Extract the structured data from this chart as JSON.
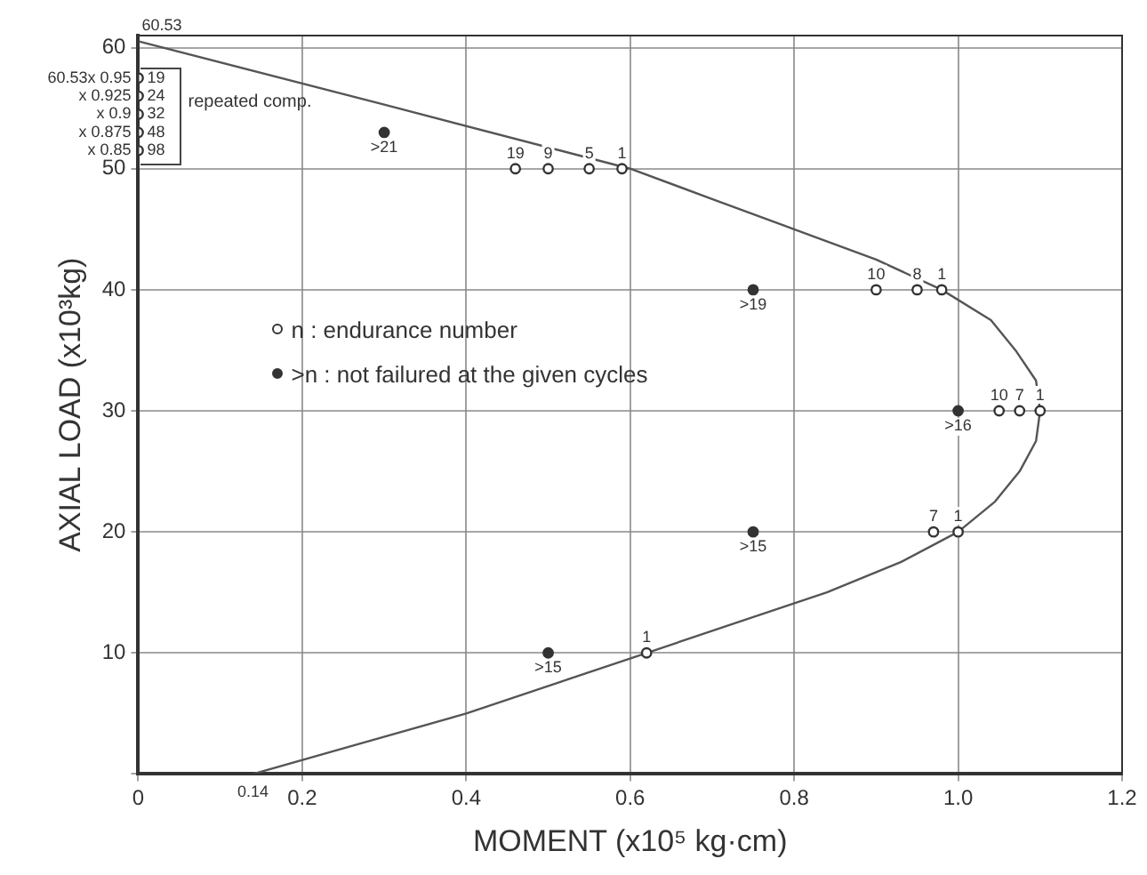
{
  "chart_data": {
    "type": "scatter",
    "xlabel": "MOMENT (x10⁵ kg·cm)",
    "ylabel": "AXIAL LOAD (x10³kg)",
    "xlim": [
      0,
      1.2
    ],
    "ylim": [
      0,
      61
    ],
    "xticks": [
      0,
      0.2,
      0.4,
      0.6,
      0.8,
      {
        "value": 1,
        "label": "1.0"
      },
      1.2
    ],
    "yticks": [
      {
        "value": 0,
        "label": null
      },
      10,
      20,
      30,
      40,
      50,
      60
    ],
    "grid": true,
    "legend": "left",
    "marker": "circle",
    "annotations": [
      "repeated comp.",
      {
        "text": "60.53x 0.95",
        "x": 0,
        "y": 57.5
      },
      {
        "text": "x 0.925",
        "x": 0,
        "y": 56
      },
      {
        "text": "x 0.9",
        "x": 0,
        "y": 54.5
      },
      {
        "text": "x 0.875",
        "x": 0,
        "y": 53
      },
      {
        "text": "x 0.85",
        "x": 0,
        "y": 51.5
      },
      {
        "text": "19",
        "x": 0,
        "y": 57.5
      },
      {
        "text": "24",
        "x": 0,
        "y": 56
      },
      {
        "text": "32",
        "x": 0,
        "y": 54.5
      },
      {
        "text": "48",
        "x": 0,
        "y": 53
      },
      {
        "text": "98",
        "x": 0,
        "y": 51.5
      },
      {
        "text": "19",
        "x": 0.46,
        "y": 50
      },
      {
        "text": "9",
        "x": 0.5,
        "y": 50
      },
      {
        "text": "5",
        "x": 0.55,
        "y": 50
      },
      {
        "text": "1",
        "x": 0.59,
        "y": 50
      },
      {
        "text": "10",
        "x": 0.9,
        "y": 40
      },
      {
        "text": "8",
        "x": 0.95,
        "y": 40
      },
      {
        "text": "1",
        "x": 0.98,
        "y": 40
      },
      {
        "text": "10",
        "x": 1.05,
        "y": 30
      },
      {
        "text": "7",
        "x": 1.075,
        "y": 30
      },
      {
        "text": "1",
        "x": 1.1,
        "y": 30
      },
      {
        "text": "7",
        "x": 0.97,
        "y": 20
      },
      {
        "text": "1",
        "x": 1.0,
        "y": 20
      },
      {
        "text": "1",
        "x": 0.62,
        "y": 10
      },
      {
        "text": ">21",
        "x": 0.3,
        "y": 53
      },
      {
        "text": ">19",
        "x": 0.75,
        "y": 40
      },
      {
        "text": ">16",
        "x": 1.0,
        "y": 30
      },
      {
        "text": ">15",
        "x": 0.75,
        "y": 20
      },
      {
        "text": ">15",
        "x": 0.5,
        "y": 10
      },
      {
        "text": "0.14",
        "x": 0.14,
        "y": 0
      },
      {
        "text": "60.53",
        "x": 0,
        "y": 60.53
      }
    ],
    "series": [
      {
        "name": "n : endurance number",
        "type": "scatter",
        "color": "#333333",
        "x": [
          0,
          0,
          0,
          0,
          0,
          0.46,
          0.5,
          0.55,
          0.59,
          0.9,
          0.95,
          0.98,
          1.05,
          1.075,
          1.1,
          0.97,
          1.0,
          0.62
        ],
        "values": [
          57.5,
          56,
          54.5,
          53,
          51.5,
          50,
          50,
          50,
          50,
          40,
          40,
          40,
          30,
          30,
          30,
          20,
          20,
          10
        ]
      },
      {
        "name": ">n : not failured at the given cycles",
        "type": "scatter",
        "color": "#333333",
        "x": [
          0.3,
          0.75,
          1.0,
          0.75,
          0.5
        ],
        "values": [
          53,
          40,
          30,
          20,
          10
        ]
      },
      {
        "type": "line",
        "color": "#555555",
        "marker": "none",
        "x": [
          0.14,
          0.27,
          0.4,
          0.51,
          0.62,
          0.73,
          0.84,
          0.93,
          1.0,
          1.045,
          1.075,
          1.095,
          1.1,
          1.095,
          1.07,
          1.04,
          0.98,
          0.9,
          0.8,
          0.7,
          0.6,
          0.3,
          0
        ],
        "values": [
          0,
          2.5,
          5,
          7.5,
          10,
          12.5,
          15,
          17.5,
          20,
          22.5,
          25,
          27.5,
          30,
          32.5,
          35,
          37.5,
          40,
          42.5,
          45,
          47.5,
          50,
          55.3,
          60.53
        ]
      }
    ]
  }
}
